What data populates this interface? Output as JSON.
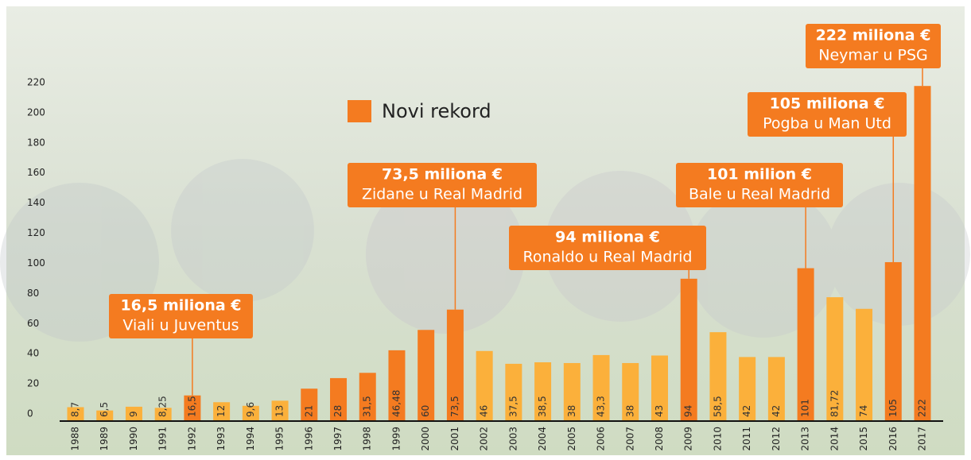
{
  "chart_data": {
    "type": "bar",
    "categories": [
      "1988",
      "1989",
      "1990",
      "1991",
      "1992",
      "1993",
      "1994",
      "1995",
      "1996",
      "1997",
      "1998",
      "1999",
      "2000",
      "2001",
      "2002",
      "2003",
      "2004",
      "2005",
      "2006",
      "2007",
      "2008",
      "2009",
      "2010",
      "2011",
      "2012",
      "2013",
      "2014",
      "2015",
      "2016",
      "2017"
    ],
    "values": [
      8.7,
      6.5,
      9,
      8.25,
      16.5,
      12,
      9.6,
      13,
      21,
      28,
      31.5,
      46.48,
      60,
      73.5,
      46,
      37.5,
      38.5,
      38,
      43.3,
      38,
      43,
      94,
      58.5,
      42,
      42,
      101,
      81.72,
      74,
      105,
      222
    ],
    "value_labels": [
      "8,7",
      "6,5",
      "9",
      "8,25",
      "16,5",
      "12",
      "9,6",
      "13",
      "21",
      "28",
      "31,5",
      "46,48",
      "60",
      "73,5",
      "46",
      "37,5",
      "38,5",
      "38",
      "43,3",
      "38",
      "43",
      "94",
      "58,5",
      "42",
      "42",
      "101",
      "81,72",
      "74",
      "105",
      "222"
    ],
    "colors": [
      "#fbb03b",
      "#fbb03b",
      "#fbb03b",
      "#fbb03b",
      "#f47b20",
      "#fbb03b",
      "#fbb03b",
      "#fbb03b",
      "#f47b20",
      "#f47b20",
      "#f47b20",
      "#f47b20",
      "#f47b20",
      "#f47b20",
      "#fbb03b",
      "#fbb03b",
      "#fbb03b",
      "#fbb03b",
      "#fbb03b",
      "#fbb03b",
      "#fbb03b",
      "#f47b20",
      "#fbb03b",
      "#fbb03b",
      "#fbb03b",
      "#f47b20",
      "#fbb03b",
      "#fbb03b",
      "#f47b20",
      "#f47b20"
    ],
    "ylim": [
      0,
      220
    ],
    "yticks": [
      0,
      20,
      40,
      60,
      80,
      100,
      120,
      140,
      160,
      180,
      200,
      220
    ],
    "legend": {
      "label": "Novi rekord",
      "color": "#f47b20"
    },
    "annotations": [
      {
        "x": "1992",
        "lines": [
          "16,5 miliona €",
          "Viali u Juventus"
        ]
      },
      {
        "x": "2001",
        "lines": [
          "73,5 miliona €",
          "Zidane u Real Madrid"
        ]
      },
      {
        "x": "2009",
        "lines": [
          "94 miliona €",
          "Ronaldo u Real Madrid"
        ]
      },
      {
        "x": "2013",
        "lines": [
          "101 milion €",
          "Bale u Real Madrid"
        ]
      },
      {
        "x": "2016",
        "lines": [
          "105 miliona €",
          "Pogba u Man Utd"
        ]
      },
      {
        "x": "2017",
        "lines": [
          "222 miliona €",
          "Neymar u PSG"
        ]
      }
    ]
  }
}
